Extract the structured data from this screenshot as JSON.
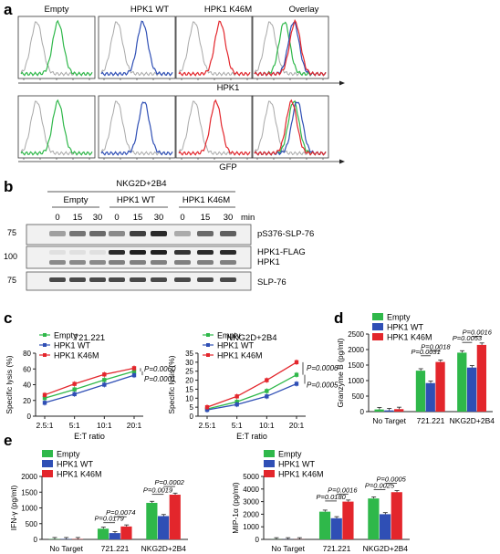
{
  "colors": {
    "empty": "#2fb84a",
    "wt": "#2f4fb5",
    "k46m": "#e3262c",
    "gray": "#a8a8a8",
    "axis": "#222222"
  },
  "panel_labels": {
    "a": "a",
    "b": "b",
    "c": "c",
    "d": "d",
    "e": "e"
  },
  "panel_a": {
    "column_titles": [
      "Empty",
      "HPK1 WT",
      "HPK1 K46M",
      "Overlay"
    ],
    "row1_xlabel": "HPK1",
    "row2_xlabel": "GFP"
  },
  "panel_b": {
    "treatment": "NKG2D+2B4",
    "groups": [
      "Empty",
      "HPK1 WT",
      "HPK1 K46M"
    ],
    "time_label": "min",
    "times": [
      "0",
      "15",
      "30",
      "0",
      "15",
      "30",
      "0",
      "15",
      "30"
    ],
    "markers": [
      "75",
      "100",
      "75"
    ],
    "bands": [
      "pS376-SLP-76",
      "HPK1-FLAG",
      "HPK1",
      "SLP-76"
    ]
  },
  "chart_data": [
    {
      "id": "c-left",
      "type": "line",
      "title": "721.221",
      "xlabel": "E:T ratio",
      "ylabel": "Specific lysis (%)",
      "categories": [
        "2.5:1",
        "5:1",
        "10:1",
        "20:1"
      ],
      "ylim": [
        0,
        80
      ],
      "yticks": [
        "0",
        "20",
        "40",
        "60",
        "80"
      ],
      "series": [
        {
          "name": "Empty",
          "values": [
            23,
            34,
            46,
            57
          ]
        },
        {
          "name": "HPK1 WT",
          "values": [
            17,
            28,
            40,
            52
          ]
        },
        {
          "name": "HPK1 K46M",
          "values": [
            27,
            41,
            53,
            61
          ]
        }
      ],
      "annotations": [
        "P=0.0060",
        "P=0.0001"
      ]
    },
    {
      "id": "c-right",
      "type": "line",
      "title": "NKG2D+2B4",
      "xlabel": "E:T ratio",
      "ylabel": "Specific lysis (%)",
      "categories": [
        "2.5:1",
        "5:1",
        "10:1",
        "20:1"
      ],
      "ylim": [
        0,
        35
      ],
      "yticks": [
        "0",
        "5",
        "10",
        "15",
        "20",
        "25",
        "30",
        "35"
      ],
      "series": [
        {
          "name": "Empty",
          "values": [
            4,
            8,
            14,
            23
          ]
        },
        {
          "name": "HPK1 WT",
          "values": [
            3.5,
            6.5,
            11,
            18
          ]
        },
        {
          "name": "HPK1 K46M",
          "values": [
            5,
            11,
            20,
            30
          ]
        }
      ],
      "annotations": [
        "P=0.0006",
        "P=0.0005"
      ]
    },
    {
      "id": "d",
      "type": "bar",
      "title": "",
      "xlabel": "",
      "ylabel": "Granzyme B (pg/ml)",
      "categories": [
        "No Target",
        "721.221",
        "NKG2D+2B4"
      ],
      "ylim": [
        0,
        2500
      ],
      "yticks": [
        "0",
        "500",
        "1000",
        "1500",
        "2000",
        "2500"
      ],
      "series": [
        {
          "name": "Empty",
          "values": [
            70,
            1320,
            1900
          ]
        },
        {
          "name": "HPK1 WT",
          "values": [
            40,
            920,
            1420
          ]
        },
        {
          "name": "HPK1 K46M",
          "values": [
            80,
            1600,
            2150
          ]
        }
      ],
      "annotations": [
        {
          "text": "P=0.0031",
          "cat": 1,
          "from": 0,
          "to": 1,
          "level": 1800
        },
        {
          "text": "P=0.0018",
          "cat": 1,
          "from": 1,
          "to": 2,
          "level": 1950
        },
        {
          "text": "P=0.0053",
          "cat": 2,
          "from": 0,
          "to": 1,
          "level": 2230
        },
        {
          "text": "P=0.0016",
          "cat": 2,
          "from": 1,
          "to": 2,
          "level": 2420
        }
      ]
    },
    {
      "id": "e-left",
      "type": "bar",
      "title": "",
      "xlabel": "",
      "ylabel": "IFN-γ (pg/ml)",
      "categories": [
        "No Target",
        "721.221",
        "NKG2D+2B4"
      ],
      "ylim": [
        0,
        2000
      ],
      "yticks": [
        "0",
        "500",
        "1000",
        "1500",
        "2000"
      ],
      "series": [
        {
          "name": "Empty",
          "values": [
            10,
            340,
            1160
          ]
        },
        {
          "name": "HPK1 WT",
          "values": [
            10,
            200,
            740
          ]
        },
        {
          "name": "HPK1 K46M",
          "values": [
            10,
            410,
            1420
          ]
        }
      ],
      "annotations": [
        {
          "text": "P=0.0179",
          "cat": 1,
          "from": 0,
          "to": 1,
          "level": 530
        },
        {
          "text": "P=0.0074",
          "cat": 1,
          "from": 1,
          "to": 2,
          "level": 720
        },
        {
          "text": "P=0.0019",
          "cat": 2,
          "from": 0,
          "to": 1,
          "level": 1430
        },
        {
          "text": "P=0.0002",
          "cat": 2,
          "from": 1,
          "to": 2,
          "level": 1680
        }
      ]
    },
    {
      "id": "e-right",
      "type": "bar",
      "title": "",
      "xlabel": "",
      "ylabel": "MIP-1α (pg/ml)",
      "categories": [
        "No Target",
        "721.221",
        "NKG2D+2B4"
      ],
      "ylim": [
        0,
        5000
      ],
      "yticks": [
        "0",
        "1000",
        "2000",
        "3000",
        "4000",
        "5000"
      ],
      "series": [
        {
          "name": "Empty",
          "values": [
            10,
            2200,
            3250
          ]
        },
        {
          "name": "HPK1 WT",
          "values": [
            10,
            1680,
            2000
          ]
        },
        {
          "name": "HPK1 K46M",
          "values": [
            10,
            3000,
            3750
          ]
        }
      ],
      "annotations": [
        {
          "text": "P=0.0180",
          "cat": 1,
          "from": 0,
          "to": 1,
          "level": 3050
        },
        {
          "text": "P=0.0016",
          "cat": 1,
          "from": 1,
          "to": 2,
          "level": 3600
        },
        {
          "text": "P=0.0025",
          "cat": 2,
          "from": 0,
          "to": 1,
          "level": 3950
        },
        {
          "text": "P=0.0005",
          "cat": 2,
          "from": 1,
          "to": 2,
          "level": 4450
        }
      ]
    }
  ]
}
